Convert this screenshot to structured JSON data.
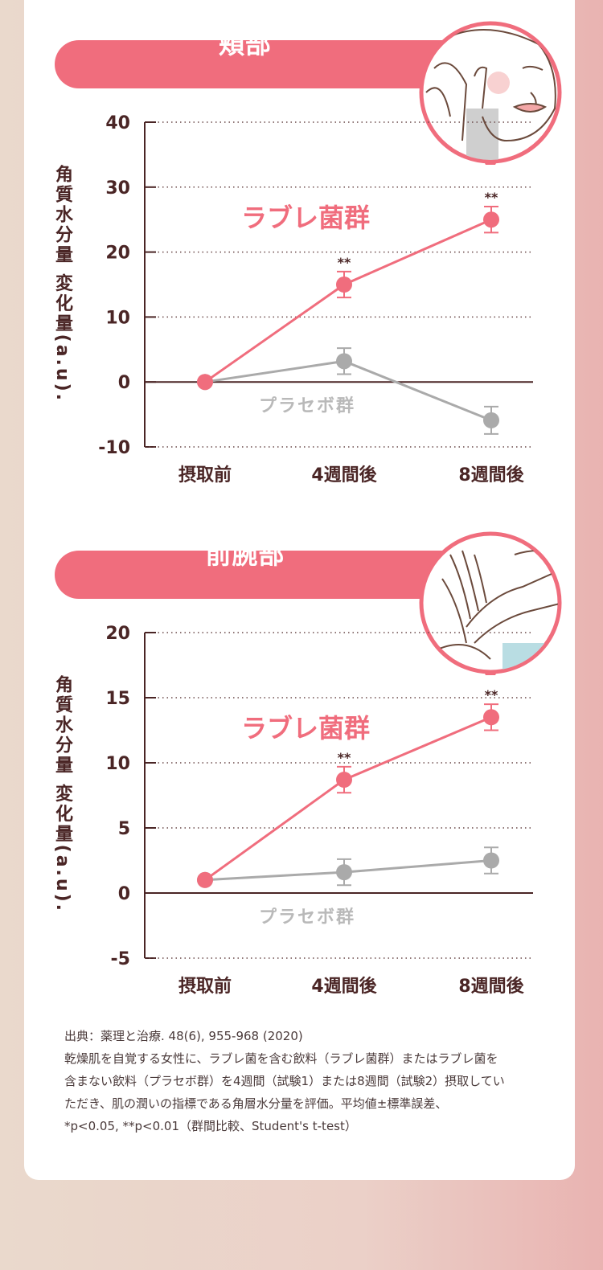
{
  "colors": {
    "lacto": "#f06d7d",
    "placebo": "#aaaaaa",
    "axis": "#4a2525"
  },
  "sections": [
    {
      "title": "頬部",
      "icon": "face-cheek-icon",
      "ylabel": "角質水分量 変化量(a.u).",
      "series_labels": {
        "lacto": "ラブレ菌群",
        "placebo": "プラセボ群"
      }
    },
    {
      "title": "前腕部",
      "icon": "forearm-hands-icon",
      "ylabel": "角質水分量 変化量(a.u).",
      "series_labels": {
        "lacto": "ラブレ菌群",
        "placebo": "プラセボ群"
      }
    }
  ],
  "chart_data": [
    {
      "type": "line",
      "title": "頬部",
      "ylabel": "角質水分量 変化量(a.u).",
      "categories": [
        "摂取前",
        "4週間後",
        "8週間後"
      ],
      "yticks": [
        40,
        30,
        20,
        10,
        0,
        -10
      ],
      "ylim": [
        -10,
        40
      ],
      "grid": true,
      "series": [
        {
          "name": "ラブレ菌群",
          "values": [
            0,
            15,
            25
          ],
          "errors": [
            0,
            2,
            2
          ],
          "significance": [
            "",
            "**",
            "**"
          ]
        },
        {
          "name": "プラセボ群",
          "values": [
            0,
            3.2,
            -5.9
          ],
          "errors": [
            0,
            2,
            2.1
          ],
          "significance": [
            "",
            "",
            ""
          ]
        }
      ]
    },
    {
      "type": "line",
      "title": "前腕部",
      "ylabel": "角質水分量 変化量(a.u).",
      "categories": [
        "摂取前",
        "4週間後",
        "8週間後"
      ],
      "yticks": [
        20,
        15,
        10,
        5,
        0,
        -5
      ],
      "ylim": [
        -5,
        20
      ],
      "grid": true,
      "series": [
        {
          "name": "ラブレ菌群",
          "values": [
            1,
            8.7,
            13.5
          ],
          "errors": [
            0,
            1,
            1
          ],
          "significance": [
            "",
            "**",
            "**"
          ]
        },
        {
          "name": "プラセボ群",
          "values": [
            1,
            1.6,
            2.5
          ],
          "errors": [
            0,
            1,
            1
          ],
          "significance": [
            "",
            "",
            ""
          ]
        }
      ]
    }
  ],
  "footnote": {
    "lines": [
      "出典：薬理と治療. 48(6), 955-968 (2020)",
      "乾燥肌を自覚する女性に、ラブレ菌を含む飲料（ラブレ菌群）またはラブレ菌を",
      "含まない飲料（プラセボ群）を4週間（試験1）または8週間（試験2）摂取してい",
      "ただき、肌の潤いの指標である角層水分量を評価。平均値±標準誤差、",
      "*p<0.05, **p<0.01（群間比較、Student's t-test）"
    ]
  }
}
